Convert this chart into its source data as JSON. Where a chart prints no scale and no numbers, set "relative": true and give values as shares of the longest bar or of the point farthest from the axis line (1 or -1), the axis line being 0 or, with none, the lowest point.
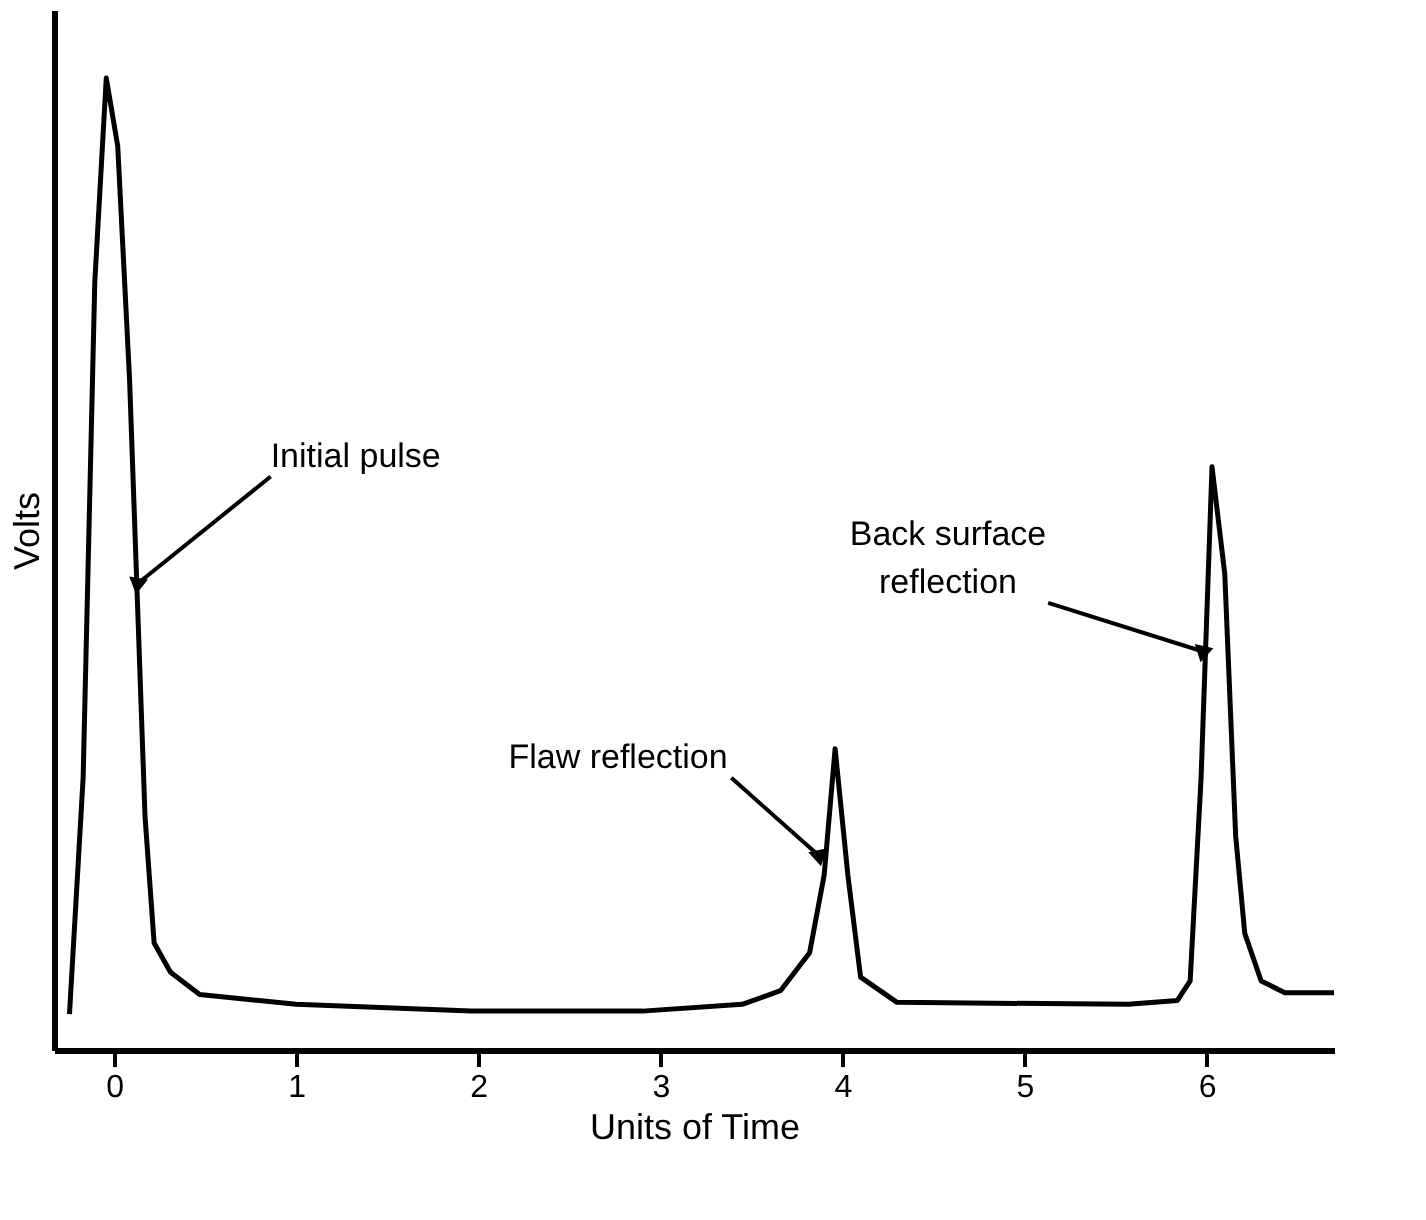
{
  "chart_data": {
    "type": "line",
    "xlabel": "Units of Time",
    "ylabel": "Volts",
    "relative": true,
    "xlim": [
      -0.33,
      6.7
    ],
    "xticks": [
      0,
      1,
      2,
      3,
      4,
      5,
      6
    ],
    "grid": false,
    "marker": "none",
    "line_style": "solid",
    "series": [
      {
        "color": "#000000",
        "x": [
          -0.245,
          -0.17,
          -0.106,
          -0.043,
          0.02,
          0.085,
          0.17,
          0.22,
          0.31,
          0.47,
          1.0,
          1.96,
          2.9,
          3.45,
          3.66,
          3.82,
          3.9,
          3.96,
          4.03,
          4.1,
          4.3,
          5.57,
          5.84,
          5.91,
          5.97,
          6.03,
          6.1,
          6.16,
          6.21,
          6.3,
          6.43,
          6.7
        ],
        "values": [
          0.037,
          0.28,
          0.79,
          1.0,
          0.93,
          0.69,
          0.24,
          0.11,
          0.08,
          0.057,
          0.047,
          0.04,
          0.04,
          0.047,
          0.061,
          0.1,
          0.18,
          0.31,
          0.18,
          0.075,
          0.049,
          0.047,
          0.051,
          0.071,
          0.28,
          0.6,
          0.49,
          0.22,
          0.12,
          0.071,
          0.059,
          0.059
        ]
      }
    ],
    "annotations": [
      {
        "text": "Initial pulse",
        "x": 0.13,
        "y": 0.48
      },
      {
        "text": "Flaw reflection",
        "x": 3.87,
        "y": 0.2
      },
      {
        "text": "Back surface\nreflection",
        "x": 5.98,
        "y": 0.41
      }
    ]
  }
}
